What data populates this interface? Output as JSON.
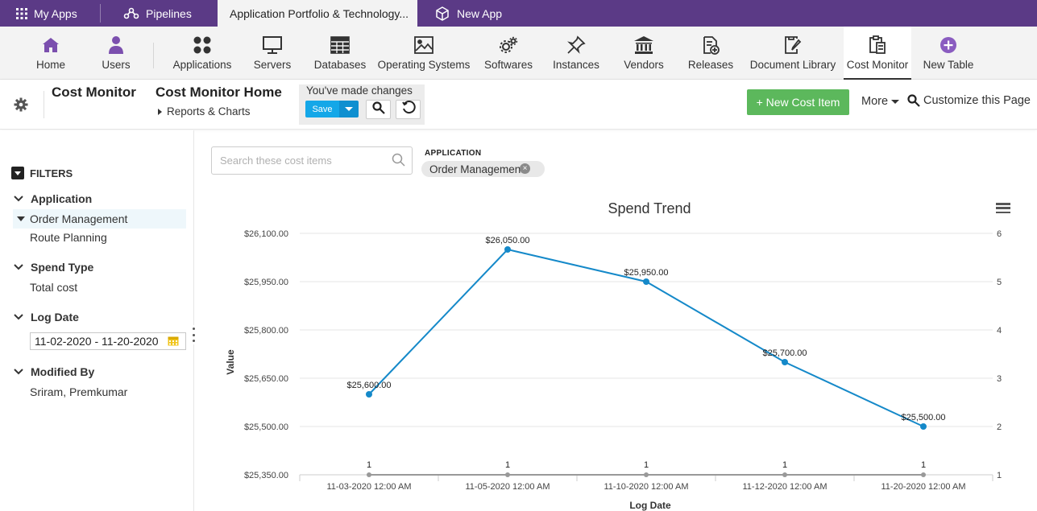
{
  "topbar": {
    "my_apps": "My Apps",
    "pipelines": "Pipelines",
    "active_tab": "Application Portfolio & Technology...",
    "new_app": "New App"
  },
  "nav": {
    "items": [
      {
        "label": "Home",
        "icon": "home-icon"
      },
      {
        "label": "Users",
        "icon": "user-icon"
      },
      {
        "label": "Applications",
        "icon": "applications-icon"
      },
      {
        "label": "Servers",
        "icon": "monitor-icon"
      },
      {
        "label": "Databases",
        "icon": "table-icon"
      },
      {
        "label": "Operating Systems",
        "icon": "image-icon"
      },
      {
        "label": "Softwares",
        "icon": "gears-icon"
      },
      {
        "label": "Instances",
        "icon": "pushpin-icon"
      },
      {
        "label": "Vendors",
        "icon": "bank-icon"
      },
      {
        "label": "Releases",
        "icon": "release-icon"
      },
      {
        "label": "Document Library",
        "icon": "document-edit-icon"
      },
      {
        "label": "Cost Monitor",
        "icon": "clipboard-icon"
      },
      {
        "label": "New Table",
        "icon": "plus-circle-icon"
      }
    ],
    "active": "Cost Monitor"
  },
  "header": {
    "section_title": "Cost Monitor",
    "page_title": "Cost Monitor Home",
    "sub_link": "Reports & Charts",
    "changes_text": "You've made changes",
    "save_label": "Save",
    "new_cost_label": "+ New Cost Item",
    "more_label": "More",
    "customize_label": "Customize this Page"
  },
  "filters": {
    "title": "FILTERS",
    "application": {
      "label": "Application",
      "selected": "Order Management",
      "other": "Route Planning"
    },
    "spend_type": {
      "label": "Spend Type",
      "value": "Total cost"
    },
    "log_date": {
      "label": "Log Date",
      "value": "11-02-2020 - 11-20-2020"
    },
    "modified_by": {
      "label": "Modified By",
      "value": "Sriram, Premkumar"
    }
  },
  "search": {
    "placeholder": "Search these cost items"
  },
  "chip": {
    "label": "APPLICATION",
    "value": "Order Management"
  },
  "colors": {
    "purple": "#5b3a86",
    "green": "#5cb85c",
    "save": "#14a7e8",
    "line": "#1589c9"
  },
  "chart_data": {
    "type": "line",
    "title": "Spend Trend",
    "xlabel": "Log Date",
    "ylabel": "Value",
    "categories": [
      "11-03-2020 12:00 AM",
      "11-05-2020 12:00 AM",
      "11-10-2020 12:00 AM",
      "11-12-2020 12:00 AM",
      "11-20-2020 12:00 AM"
    ],
    "series": [
      {
        "axis": "left",
        "values": [
          25600,
          26050,
          25950,
          25700,
          25500
        ],
        "labels": [
          "$25,600.00",
          "$26,050.00",
          "$25,950.00",
          "$25,700.00",
          "$25,500.00"
        ]
      },
      {
        "axis": "right",
        "values": [
          1,
          1,
          1,
          1,
          1
        ],
        "labels": [
          "1",
          "1",
          "1",
          "1",
          "1"
        ]
      }
    ],
    "ylim": [
      25350,
      26100
    ],
    "yticks": [
      "$25,350.00",
      "$25,500.00",
      "$25,650.00",
      "$25,800.00",
      "$25,950.00",
      "$26,100.00"
    ],
    "y2lim": [
      1,
      6
    ],
    "y2ticks": [
      "1",
      "2",
      "3",
      "4",
      "5",
      "6"
    ],
    "grid": true
  }
}
